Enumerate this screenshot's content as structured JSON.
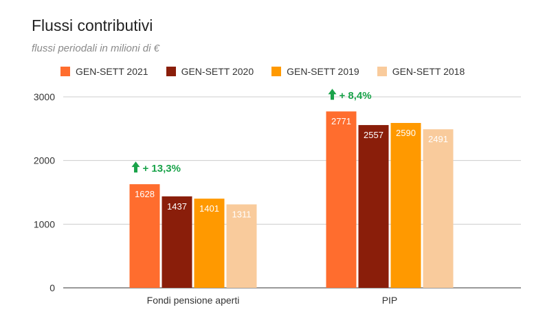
{
  "title": "Flussi contributivi",
  "subtitle": "flussi periodali in milioni di €",
  "chart_data": {
    "type": "bar",
    "categories": [
      "Fondi pensione aperti",
      "PIP"
    ],
    "series": [
      {
        "name": "GEN-SETT 2021",
        "color": "#ff6d2e",
        "values": [
          1628,
          2771
        ]
      },
      {
        "name": "GEN-SETT 2020",
        "color": "#8a1e0a",
        "values": [
          1437,
          2557
        ]
      },
      {
        "name": "GEN-SETT 2019",
        "color": "#ff9900",
        "values": [
          1401,
          2590
        ]
      },
      {
        "name": "GEN-SETT 2018",
        "color": "#f9cb9c",
        "values": [
          1311,
          2491
        ]
      }
    ],
    "ylim": [
      0,
      3000
    ],
    "yticks": [
      0,
      1000,
      2000,
      3000
    ],
    "grid": true,
    "legend_position": "top-left",
    "annotations": [
      {
        "category": "Fondi pensione aperti",
        "text": "+ 13,3%",
        "color": "#1aa34a"
      },
      {
        "category": "PIP",
        "text": "+ 8,4%",
        "color": "#1aa34a"
      }
    ]
  }
}
